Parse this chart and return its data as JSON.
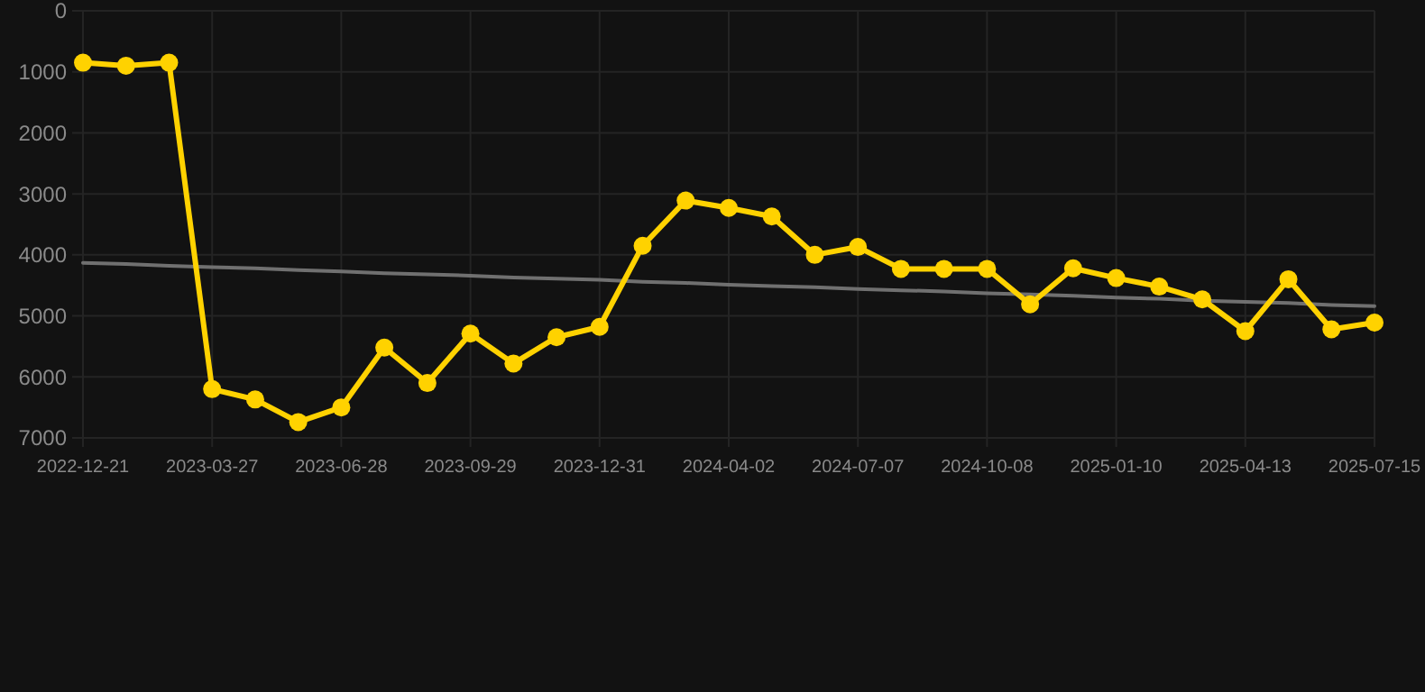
{
  "chart_data": {
    "type": "line",
    "categories": [
      "2022-12-21",
      null,
      null,
      "2023-03-27",
      null,
      null,
      "2023-06-28",
      null,
      null,
      "2023-09-29",
      null,
      null,
      "2023-12-31",
      null,
      null,
      "2024-04-02",
      null,
      null,
      "2024-07-07",
      null,
      null,
      "2024-10-08",
      null,
      null,
      "2025-01-10",
      null,
      null,
      "2025-04-13",
      null,
      null,
      "2025-07-15"
    ],
    "series": [
      {
        "color": "#ffd200",
        "marker": "circle",
        "values": [
          850,
          900,
          850,
          6200,
          6370,
          6740,
          6500,
          5520,
          6100,
          5290,
          5780,
          5350,
          5180,
          3850,
          3110,
          3230,
          3370,
          4000,
          3870,
          4230,
          4230,
          4230,
          4810,
          4220,
          4380,
          4520,
          4730,
          5250,
          4400,
          5220,
          5110
        ]
      },
      {
        "color": "#707070",
        "marker": "none",
        "values": [
          4130,
          4150,
          4180,
          4200,
          4220,
          4250,
          4270,
          4300,
          4320,
          4340,
          4370,
          4390,
          4410,
          4440,
          4460,
          4490,
          4510,
          4530,
          4560,
          4580,
          4600,
          4630,
          4650,
          4670,
          4700,
          4720,
          4750,
          4770,
          4790,
          4820,
          4840
        ]
      }
    ],
    "ylim": [
      7000,
      0
    ],
    "yticks": [
      0,
      1000,
      2000,
      3000,
      4000,
      5000,
      6000,
      7000
    ],
    "grid": true
  }
}
